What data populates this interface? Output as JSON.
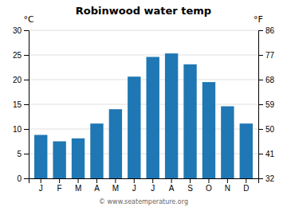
{
  "chart_data": {
    "type": "bar",
    "title": "Robinwood water temp",
    "categories": [
      "J",
      "F",
      "M",
      "A",
      "M",
      "J",
      "J",
      "A",
      "S",
      "O",
      "N",
      "D"
    ],
    "values": [
      8.8,
      7.5,
      8.1,
      11.1,
      14.0,
      20.6,
      24.6,
      25.3,
      23.1,
      19.5,
      14.6,
      11.1
    ],
    "ylabel": "°C",
    "y2label": "°F",
    "ylim": [
      0,
      30
    ],
    "yticks": [
      0,
      5,
      10,
      15,
      20,
      25,
      30
    ],
    "y2lim": [
      32,
      86
    ],
    "y2ticks": [
      32,
      41,
      50,
      59,
      68,
      77,
      86
    ],
    "grid": true,
    "annotations": [
      "© www.seatemperature.org"
    ]
  }
}
